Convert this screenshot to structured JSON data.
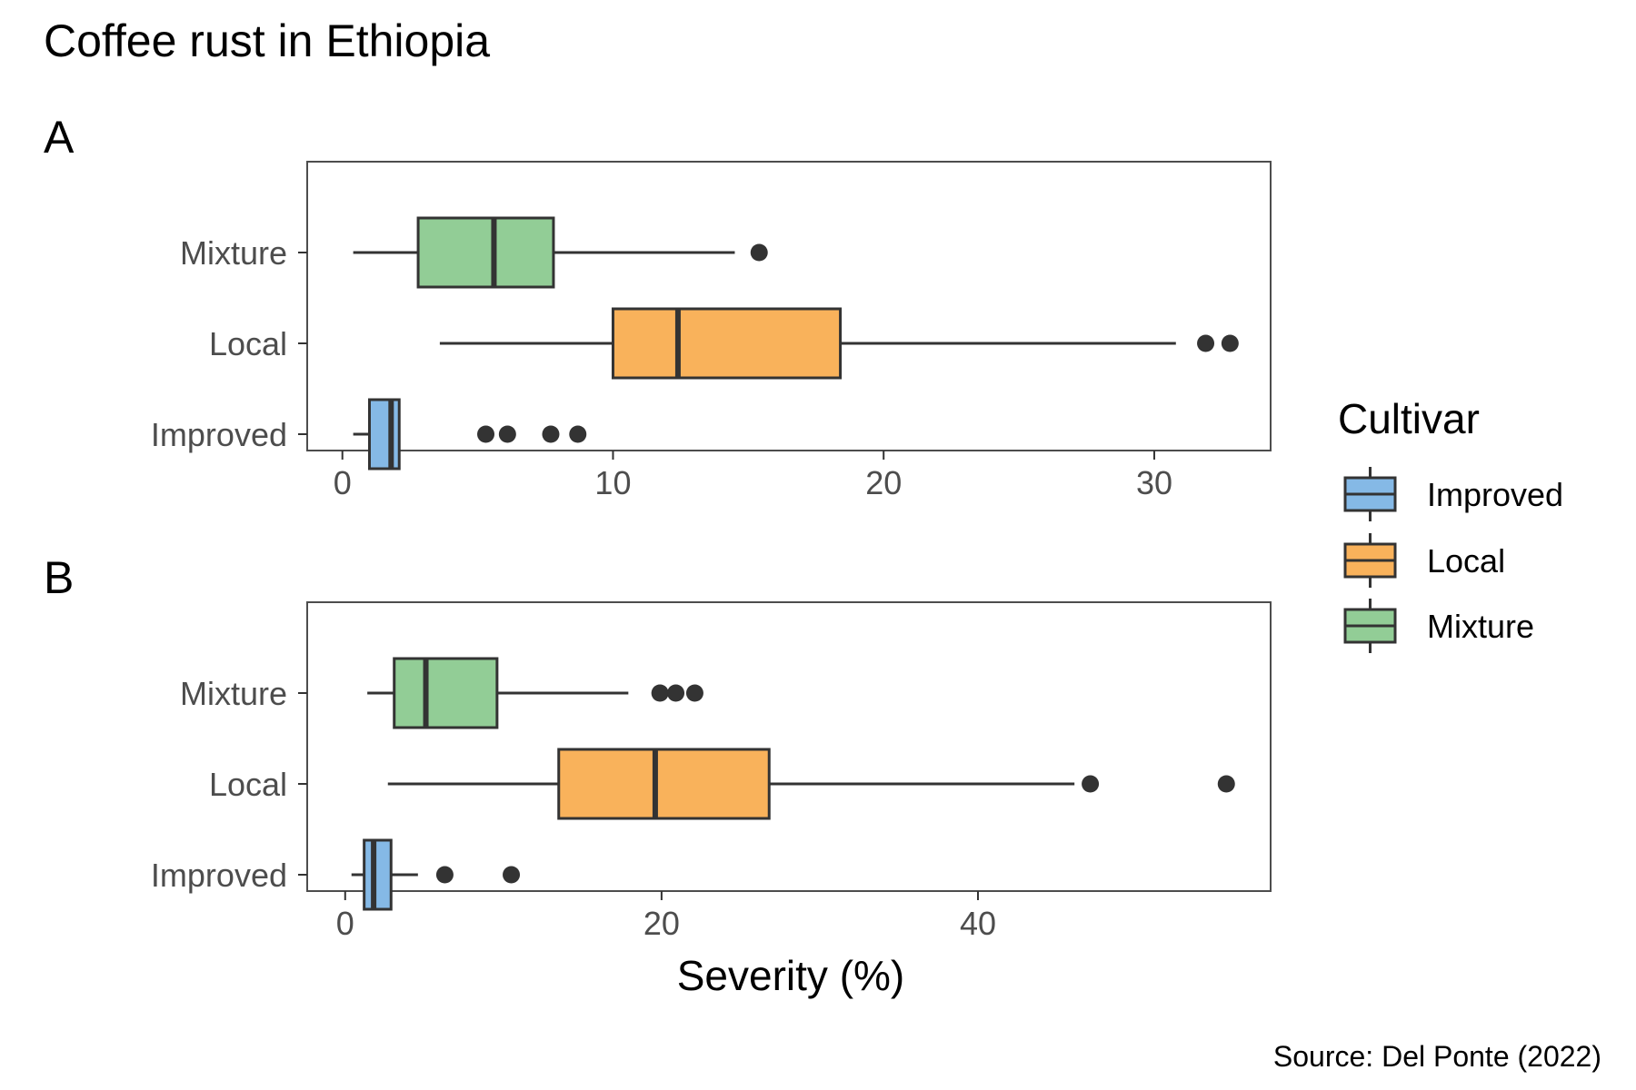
{
  "chart_data": {
    "type": "boxplot",
    "title": "Coffee rust in Ethiopia",
    "caption": "Source: Del Ponte (2022)",
    "xlabel": "Severity (%)",
    "categories": [
      "Mixture",
      "Local",
      "Improved"
    ],
    "legend": {
      "title": "Cultivar",
      "placement": "right",
      "items": [
        "Improved",
        "Local",
        "Mixture"
      ]
    },
    "colors": {
      "Improved": "#85b9e6",
      "Local": "#f9b25b",
      "Mixture": "#92cd96",
      "outline": "#333333",
      "panel_border": "#4d4d4d"
    },
    "panels": [
      {
        "tag": "A",
        "xlim": [
          -1.3,
          34.3
        ],
        "xticks": [
          0,
          10,
          20,
          30
        ],
        "xtick_labels": [
          "0",
          "10",
          "20",
          "30"
        ],
        "boxes": [
          {
            "group": "Mixture",
            "whisker_low": 0.4,
            "q1": 2.8,
            "median": 5.6,
            "q3": 7.8,
            "whisker_high": 14.5,
            "outliers": [
              15.4
            ]
          },
          {
            "group": "Local",
            "whisker_low": 3.6,
            "q1": 10.0,
            "median": 12.4,
            "q3": 18.4,
            "whisker_high": 30.8,
            "outliers": [
              31.9,
              32.8
            ]
          },
          {
            "group": "Improved",
            "whisker_low": 0.4,
            "q1": 1.0,
            "median": 1.8,
            "q3": 2.1,
            "whisker_high": 2.1,
            "outliers": [
              5.3,
              6.1,
              7.7,
              8.7
            ]
          }
        ]
      },
      {
        "tag": "B",
        "xlim": [
          -2.4,
          58.5
        ],
        "xticks": [
          0,
          20,
          40
        ],
        "xtick_labels": [
          "0",
          "20",
          "40"
        ],
        "boxes": [
          {
            "group": "Mixture",
            "whisker_low": 1.4,
            "q1": 3.1,
            "median": 5.1,
            "q3": 9.6,
            "whisker_high": 17.9,
            "outliers": [
              19.9,
              20.9,
              22.1
            ]
          },
          {
            "group": "Local",
            "whisker_low": 2.7,
            "q1": 13.5,
            "median": 19.6,
            "q3": 26.8,
            "whisker_high": 46.1,
            "outliers": [
              47.1,
              55.7
            ]
          },
          {
            "group": "Improved",
            "whisker_low": 0.4,
            "q1": 1.2,
            "median": 1.8,
            "q3": 2.9,
            "whisker_high": 4.6,
            "outliers": [
              6.3,
              10.5
            ]
          }
        ]
      }
    ]
  }
}
